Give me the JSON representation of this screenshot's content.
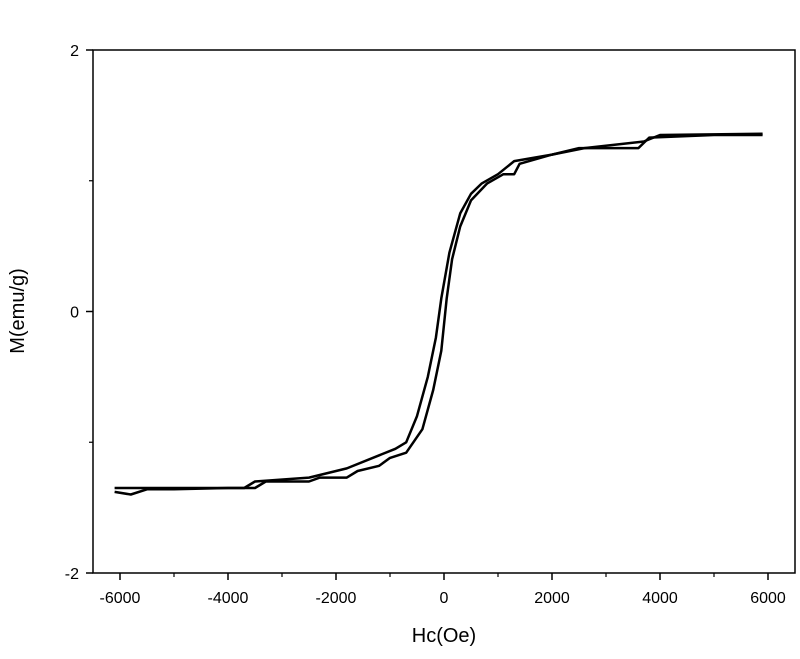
{
  "chart_data": {
    "type": "line",
    "x_label": "Hc(Oe)",
    "y_label": "M(emu/g)",
    "xlim": [
      -6500,
      6500
    ],
    "xticks": [
      -6000,
      -4000,
      -2000,
      0,
      2000,
      4000,
      6000
    ],
    "ylim": [
      -2,
      2
    ],
    "yticks": [
      -2,
      0,
      2
    ],
    "series": [
      {
        "color": "#000000",
        "x": [
          -6100,
          -5800,
          -5500,
          -5000,
          -4000,
          -3500,
          -3300,
          -2500,
          -2300,
          -1800,
          -1600,
          -1200,
          -1000,
          -700,
          -400,
          -200,
          -50,
          50,
          150,
          300,
          500,
          800,
          1100,
          1300,
          1400,
          2000,
          2500,
          3600,
          3800,
          5000,
          5900
        ],
        "values": [
          -1.38,
          -1.4,
          -1.36,
          -1.36,
          -1.35,
          -1.35,
          -1.3,
          -1.3,
          -1.27,
          -1.27,
          -1.22,
          -1.18,
          -1.12,
          -1.08,
          -0.9,
          -0.6,
          -0.3,
          0.1,
          0.4,
          0.65,
          0.85,
          0.98,
          1.05,
          1.05,
          1.13,
          1.2,
          1.25,
          1.25,
          1.33,
          1.35,
          1.35
        ]
      },
      {
        "color": "#000000",
        "x": [
          5900,
          4000,
          3700,
          2600,
          2000,
          1300,
          1000,
          700,
          500,
          300,
          100,
          -50,
          -150,
          -300,
          -500,
          -700,
          -900,
          -1200,
          -1800,
          -2500,
          -3500,
          -3700,
          -5000,
          -6100
        ],
        "values": [
          1.36,
          1.35,
          1.3,
          1.25,
          1.2,
          1.15,
          1.05,
          0.98,
          0.9,
          0.75,
          0.45,
          0.1,
          -0.2,
          -0.5,
          -0.8,
          -1.0,
          -1.05,
          -1.1,
          -1.2,
          -1.27,
          -1.3,
          -1.35,
          -1.35,
          -1.35
        ]
      }
    ]
  }
}
